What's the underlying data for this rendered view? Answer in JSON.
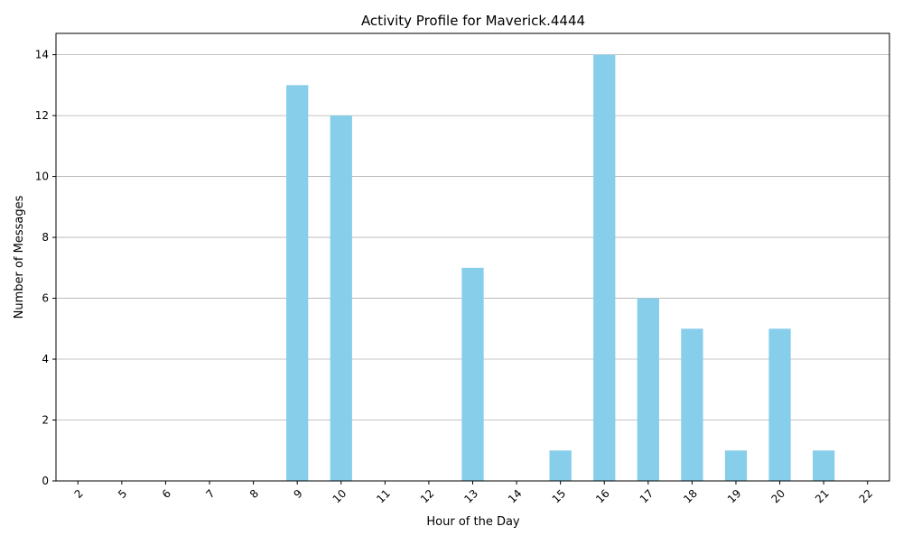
{
  "colors": {
    "bar": "#87ceeb",
    "grid": "#b0b0b0",
    "axis": "#000000",
    "background": "#ffffff"
  },
  "chart_data": {
    "type": "bar",
    "title": "Activity Profile for Maverick.4444",
    "xlabel": "Hour of the Day",
    "ylabel": "Number of Messages",
    "categories": [
      "2",
      "5",
      "6",
      "7",
      "8",
      "9",
      "10",
      "11",
      "12",
      "13",
      "14",
      "15",
      "16",
      "17",
      "18",
      "19",
      "20",
      "21",
      "22"
    ],
    "values": [
      0,
      0,
      0,
      0,
      0,
      13,
      12,
      0,
      0,
      7,
      0,
      1,
      14,
      6,
      5,
      1,
      5,
      1,
      0
    ],
    "ylim": [
      0,
      14.7
    ],
    "yticks": [
      0,
      2,
      4,
      6,
      8,
      10,
      12,
      14
    ],
    "grid": "y-axis only",
    "legend": "none",
    "xtick_rotation": "45 degrees"
  }
}
